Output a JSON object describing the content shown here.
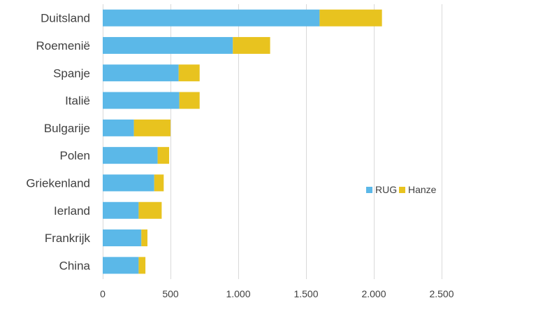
{
  "chart_data": {
    "type": "bar",
    "orientation": "horizontal",
    "stacked": true,
    "categories": [
      "Duitsland",
      "Roemenië",
      "Spanje",
      "Italië",
      "Bulgarije",
      "Polen",
      "Griekenland",
      "Ierland",
      "Frankrijk",
      "China"
    ],
    "series": [
      {
        "name": "RUG",
        "color": "#5bb8e8",
        "values": [
          1600,
          960,
          560,
          565,
          230,
          405,
          380,
          265,
          285,
          265
        ]
      },
      {
        "name": "Hanze",
        "color": "#e8c31f",
        "values": [
          460,
          275,
          155,
          150,
          270,
          85,
          70,
          170,
          45,
          50
        ]
      }
    ],
    "title": "",
    "xlabel": "",
    "ylabel": "",
    "xlim": [
      0,
      2500
    ],
    "xticks": [
      0,
      500,
      1000,
      1500,
      2000,
      2500
    ],
    "xtick_labels": [
      "0",
      "500",
      "1.000",
      "1.500",
      "2.000",
      "2.500"
    ],
    "grid": "vertical",
    "legend_position": "right"
  }
}
